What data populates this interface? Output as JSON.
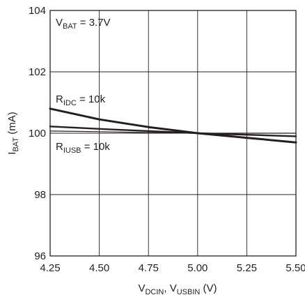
{
  "chart_data": {
    "type": "line",
    "title": "",
    "xlabel": {
      "main1": "V",
      "sub1": "DCIN",
      "sep": ", V",
      "sub2": "USBIN",
      "rest": " (V)"
    },
    "ylabel": {
      "main": "I",
      "sub": "BAT",
      "rest": " (mA)"
    },
    "xlim": [
      4.25,
      5.5
    ],
    "ylim": [
      96,
      104
    ],
    "xticks": [
      4.25,
      4.5,
      4.75,
      5.0,
      5.25,
      5.5
    ],
    "xtick_labels": [
      "4.25",
      "4.50",
      "4.75",
      "5.00",
      "5.25",
      "5.50"
    ],
    "yticks": [
      96,
      98,
      100,
      102,
      104
    ],
    "ytick_labels": [
      "96",
      "98",
      "100",
      "102",
      "104"
    ],
    "grid": true,
    "series": [
      {
        "name": "RIDC = 10k",
        "x": [
          4.25,
          4.5,
          4.75,
          5.0,
          5.25,
          5.5
        ],
        "y": [
          100.8,
          100.45,
          100.2,
          100.0,
          99.85,
          99.7
        ]
      },
      {
        "name": "RIUSB = 10k",
        "x": [
          4.25,
          4.5,
          4.75,
          5.0,
          5.25,
          5.5
        ],
        "y": [
          100.22,
          100.14,
          100.07,
          100.0,
          99.95,
          99.9
        ]
      },
      {
        "name": "",
        "x": [
          4.25,
          4.5,
          4.75,
          5.0,
          5.25,
          5.5
        ],
        "y": [
          100.07,
          100.05,
          100.02,
          100.0,
          100.0,
          100.0
        ]
      }
    ],
    "annotations": [
      {
        "main": "V",
        "sub": "BAT",
        "rest": " = 3.7V"
      },
      {
        "main": "R",
        "sub": "IDC",
        "rest": " = 10k"
      },
      {
        "main": "R",
        "sub": "IUSB",
        "rest": " = 10k"
      }
    ],
    "colors": {
      "line": "#231f20",
      "grid": "#231f20"
    }
  }
}
